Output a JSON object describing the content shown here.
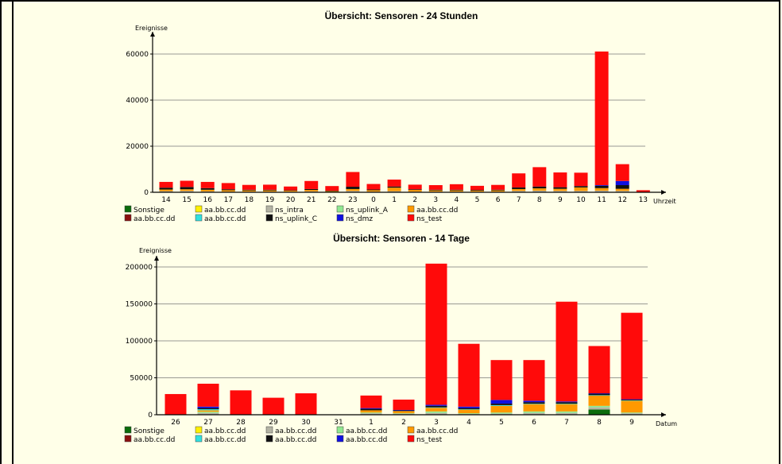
{
  "colors": {
    "sonstige": "#0B6B0B",
    "yellow": "#FFF000",
    "ns_intra": "#B4B4A4",
    "ns_uplink_a": "#90E890",
    "orange": "#FF9900",
    "darkred": "#8B0F0F",
    "cyan": "#30E0E0",
    "black": "#101010",
    "blue": "#1010E0",
    "red": "#FF0A0A"
  },
  "chart_data": [
    {
      "type": "bar",
      "stacked": true,
      "title": "Übersicht: Sensoren - 24 Stunden",
      "ylabel": "Ereignisse",
      "xlabel": "Uhrzeit",
      "ylim": [
        0,
        65000
      ],
      "yticks": [
        0,
        20000,
        40000,
        60000
      ],
      "grid": true,
      "categories": [
        "14",
        "15",
        "16",
        "17",
        "18",
        "19",
        "20",
        "21",
        "22",
        "23",
        "0",
        "1",
        "2",
        "3",
        "4",
        "5",
        "6",
        "7",
        "8",
        "9",
        "10",
        "11",
        "12",
        "13"
      ],
      "series": [
        {
          "name": "Sonstige",
          "color": "sonstige",
          "values": [
            0,
            0,
            0,
            0,
            0,
            0,
            0,
            0,
            0,
            0,
            0,
            0,
            0,
            0,
            0,
            0,
            0,
            0,
            0,
            0,
            0,
            0,
            200,
            0
          ]
        },
        {
          "name": "aa.bb.cc.dd",
          "color": "yellow",
          "values": [
            0,
            0,
            0,
            0,
            0,
            0,
            0,
            0,
            0,
            0,
            0,
            0,
            0,
            0,
            0,
            0,
            0,
            0,
            0,
            0,
            0,
            0,
            0,
            0
          ]
        },
        {
          "name": "ns_intra",
          "color": "ns_intra",
          "values": [
            500,
            600,
            400,
            300,
            300,
            300,
            300,
            400,
            200,
            600,
            300,
            500,
            300,
            300,
            300,
            300,
            300,
            600,
            700,
            600,
            600,
            700,
            400,
            0
          ]
        },
        {
          "name": "ns_uplink_A",
          "color": "ns_uplink_a",
          "values": [
            0,
            0,
            0,
            0,
            0,
            0,
            0,
            0,
            0,
            0,
            0,
            0,
            0,
            0,
            0,
            0,
            0,
            0,
            0,
            0,
            0,
            0,
            0,
            0
          ]
        },
        {
          "name": "aa.bb.cc.dd",
          "color": "orange",
          "values": [
            700,
            700,
            700,
            600,
            500,
            500,
            400,
            600,
            300,
            800,
            600,
            1500,
            700,
            500,
            500,
            400,
            500,
            800,
            1000,
            900,
            1500,
            1100,
            900,
            0
          ]
        },
        {
          "name": "aa.bb.cc.dd",
          "color": "darkred",
          "values": [
            0,
            0,
            0,
            0,
            0,
            0,
            0,
            0,
            0,
            0,
            0,
            0,
            0,
            0,
            0,
            0,
            0,
            0,
            0,
            0,
            0,
            0,
            0,
            0
          ]
        },
        {
          "name": "aa.bb.cc.dd",
          "color": "cyan",
          "values": [
            0,
            0,
            0,
            0,
            0,
            0,
            0,
            0,
            0,
            0,
            0,
            0,
            0,
            0,
            0,
            0,
            0,
            0,
            0,
            0,
            0,
            0,
            0,
            0
          ]
        },
        {
          "name": "ns_uplink_C",
          "color": "black",
          "values": [
            800,
            1000,
            700,
            400,
            300,
            300,
            200,
            400,
            200,
            1000,
            300,
            500,
            300,
            300,
            300,
            300,
            300,
            700,
            800,
            700,
            600,
            1000,
            1600,
            100
          ]
        },
        {
          "name": "ns_dmz",
          "color": "blue",
          "values": [
            0,
            0,
            0,
            0,
            0,
            0,
            0,
            0,
            0,
            0,
            0,
            0,
            0,
            0,
            0,
            0,
            0,
            0,
            0,
            0,
            0,
            300,
            1800,
            0
          ]
        },
        {
          "name": "ns_test",
          "color": "red",
          "values": [
            2500,
            2700,
            2700,
            2700,
            2100,
            2200,
            1600,
            3500,
            2000,
            6400,
            2400,
            3000,
            2000,
            2000,
            2400,
            1800,
            2100,
            6100,
            8400,
            6400,
            5800,
            58000,
            7300,
            800
          ]
        }
      ]
    },
    {
      "type": "bar",
      "stacked": true,
      "title": "Übersicht: Sensoren - 14 Tage",
      "ylabel": "Ereignisse",
      "xlabel": "Datum",
      "ylim": [
        0,
        215000
      ],
      "yticks": [
        0,
        50000,
        100000,
        150000,
        200000
      ],
      "grid": true,
      "categories": [
        "26",
        "27",
        "28",
        "29",
        "30",
        "31",
        "1",
        "2",
        "3",
        "4",
        "5",
        "6",
        "7",
        "8",
        "9"
      ],
      "series": [
        {
          "name": "Sonstige",
          "color": "sonstige",
          "values": [
            0,
            0,
            0,
            0,
            0,
            0,
            0,
            0,
            0,
            0,
            0,
            0,
            0,
            7000,
            0
          ]
        },
        {
          "name": "aa.bb.cc.dd",
          "color": "yellow",
          "values": [
            0,
            0,
            0,
            0,
            0,
            0,
            0,
            0,
            0,
            0,
            0,
            0,
            0,
            0,
            0
          ]
        },
        {
          "name": "aa.bb.cc.dd",
          "color": "ns_intra",
          "values": [
            0,
            2500,
            0,
            0,
            0,
            0,
            2000,
            1500,
            2500,
            1000,
            1500,
            2500,
            2500,
            3000,
            2000
          ]
        },
        {
          "name": "aa.bb.cc.dd",
          "color": "ns_uplink_a",
          "values": [
            0,
            1500,
            0,
            0,
            0,
            0,
            1000,
            500,
            2000,
            1000,
            1500,
            2000,
            2000,
            2000,
            1000
          ]
        },
        {
          "name": "aa.bb.cc.dd",
          "color": "orange",
          "values": [
            0,
            2000,
            0,
            0,
            0,
            0,
            3000,
            3000,
            5000,
            5000,
            9000,
            10000,
            10000,
            14000,
            16000
          ]
        },
        {
          "name": "aa.bb.cc.dd",
          "color": "darkred",
          "values": [
            0,
            0,
            0,
            0,
            0,
            0,
            0,
            0,
            0,
            0,
            0,
            0,
            0,
            0,
            0
          ]
        },
        {
          "name": "aa.bb.cc.dd",
          "color": "cyan",
          "values": [
            0,
            1500,
            0,
            0,
            0,
            0,
            0,
            0,
            500,
            500,
            1000,
            500,
            500,
            500,
            500
          ]
        },
        {
          "name": "aa.bb.cc.dd",
          "color": "black",
          "values": [
            0,
            1500,
            0,
            0,
            0,
            0,
            2000,
            1000,
            2000,
            1500,
            2000,
            2000,
            2000,
            2000,
            1000
          ]
        },
        {
          "name": "aa.bb.cc.dd",
          "color": "blue",
          "values": [
            0,
            2000,
            0,
            0,
            0,
            0,
            1000,
            500,
            1500,
            2000,
            5000,
            2000,
            1000,
            500,
            500
          ]
        },
        {
          "name": "ns_test",
          "color": "red",
          "values": [
            28000,
            31000,
            33000,
            23000,
            29000,
            0,
            17000,
            14000,
            191000,
            85000,
            54000,
            55000,
            135000,
            64000,
            117000
          ]
        }
      ]
    }
  ],
  "legends": [
    {
      "row1": [
        {
          "label": "Sonstige",
          "color": "sonstige"
        },
        {
          "label": "aa.bb.cc.dd",
          "color": "yellow"
        },
        {
          "label": "ns_intra",
          "color": "ns_intra"
        },
        {
          "label": "ns_uplink_A",
          "color": "ns_uplink_a"
        },
        {
          "label": "aa.bb.cc.dd",
          "color": "orange"
        }
      ],
      "row2": [
        {
          "label": "aa.bb.cc.dd",
          "color": "darkred"
        },
        {
          "label": "aa.bb.cc.dd",
          "color": "cyan"
        },
        {
          "label": "ns_uplink_C",
          "color": "black"
        },
        {
          "label": "ns_dmz",
          "color": "blue"
        },
        {
          "label": "ns_test",
          "color": "red"
        }
      ]
    },
    {
      "row1": [
        {
          "label": "Sonstige",
          "color": "sonstige"
        },
        {
          "label": "aa.bb.cc.dd",
          "color": "yellow"
        },
        {
          "label": "aa.bb.cc.dd",
          "color": "ns_intra"
        },
        {
          "label": "aa.bb.cc.dd",
          "color": "ns_uplink_a"
        },
        {
          "label": "aa.bb.cc.dd",
          "color": "orange"
        }
      ],
      "row2": [
        {
          "label": "aa.bb.cc.dd",
          "color": "darkred"
        },
        {
          "label": "aa.bb.cc.dd",
          "color": "cyan"
        },
        {
          "label": "aa.bb.cc.dd",
          "color": "black"
        },
        {
          "label": "aa.bb.cc.dd",
          "color": "blue"
        },
        {
          "label": "ns_test",
          "color": "red"
        }
      ]
    }
  ]
}
